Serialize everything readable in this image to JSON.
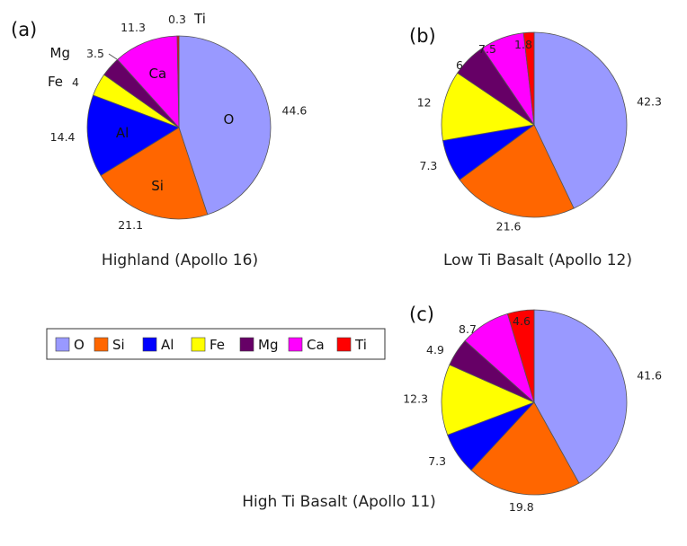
{
  "chart_data": [
    {
      "type": "pie",
      "panel": "(a)",
      "title": "Highland (Apollo 16)",
      "slices": [
        {
          "label": "O",
          "value": 44.6,
          "value_text": "44.6"
        },
        {
          "label": "Si",
          "value": 21.1,
          "value_text": "21.1"
        },
        {
          "label": "Al",
          "value": 14.4,
          "value_text": "14.4"
        },
        {
          "label": "Fe",
          "value": 4,
          "value_text": "4"
        },
        {
          "label": "Mg",
          "value": 3.5,
          "value_text": "3.5"
        },
        {
          "label": "Ca",
          "value": 11.3,
          "value_text": "11.3"
        },
        {
          "label": "Ti",
          "value": 0.3,
          "value_text": "0.3"
        }
      ],
      "slice_labels_inside": [
        "O",
        "Si",
        "Al",
        "Ca"
      ],
      "slice_labels_outside": [
        "Mg",
        "Fe",
        "Ti"
      ]
    },
    {
      "type": "pie",
      "panel": "(b)",
      "title": "Low Ti Basalt (Apollo 12)",
      "slices": [
        {
          "label": "O",
          "value": 42.3,
          "value_text": "42.3"
        },
        {
          "label": "Si",
          "value": 21.6,
          "value_text": "21.6"
        },
        {
          "label": "Al",
          "value": 7.3,
          "value_text": "7.3"
        },
        {
          "label": "Fe",
          "value": 12,
          "value_text": "12"
        },
        {
          "label": "Mg",
          "value": 6,
          "value_text": "6"
        },
        {
          "label": "Ca",
          "value": 7.5,
          "value_text": "7.5"
        },
        {
          "label": "Ti",
          "value": 1.8,
          "value_text": "1.8"
        }
      ]
    },
    {
      "type": "pie",
      "panel": "(c)",
      "title": "High Ti Basalt (Apollo 11)",
      "slices": [
        {
          "label": "O",
          "value": 41.6,
          "value_text": "41.6"
        },
        {
          "label": "Si",
          "value": 19.8,
          "value_text": "19.8"
        },
        {
          "label": "Al",
          "value": 7.3,
          "value_text": "7.3"
        },
        {
          "label": "Fe",
          "value": 12.3,
          "value_text": "12.3"
        },
        {
          "label": "Mg",
          "value": 4.9,
          "value_text": "4.9"
        },
        {
          "label": "Ca",
          "value": 8.7,
          "value_text": "8.7"
        },
        {
          "label": "Ti",
          "value": 4.6,
          "value_text": "4.6"
        }
      ]
    }
  ],
  "legend": [
    {
      "label": "O",
      "color": "#9999ff"
    },
    {
      "label": "Si",
      "color": "#ff6600"
    },
    {
      "label": "Al",
      "color": "#0000ff"
    },
    {
      "label": "Fe",
      "color": "#ffff00"
    },
    {
      "label": "Mg",
      "color": "#660066"
    },
    {
      "label": "Ca",
      "color": "#ff00ff"
    },
    {
      "label": "Ti",
      "color": "#ff0000"
    }
  ],
  "colors": {
    "O": "#9999ff",
    "Si": "#ff6600",
    "Al": "#0000ff",
    "Fe": "#ffff00",
    "Mg": "#660066",
    "Ca": "#ff00ff",
    "Ti": "#ff0000"
  }
}
